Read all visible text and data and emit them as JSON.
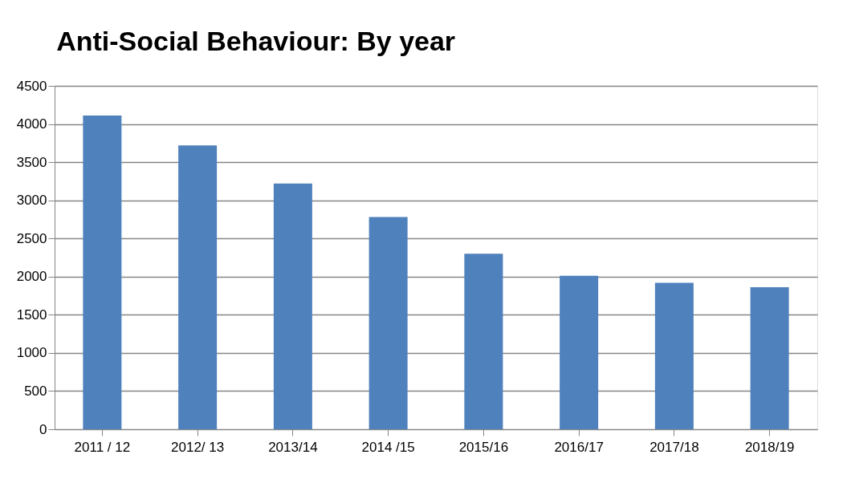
{
  "chart_data": {
    "type": "bar",
    "title": "Anti-Social Behaviour: By year",
    "categories": [
      "2011 / 12",
      "2012/ 13",
      "2013/14",
      "2014 /15",
      "2015/16",
      "2016/17",
      "2017/18",
      "2018/19"
    ],
    "values": [
      4110,
      3720,
      3220,
      2780,
      2300,
      2010,
      1920,
      1860
    ],
    "color": "#4f81bd",
    "ylim": [
      0,
      4500
    ],
    "yticks": [
      0,
      500,
      1000,
      1500,
      2000,
      2500,
      3000,
      3500,
      4000,
      4500
    ],
    "grid": "y"
  }
}
